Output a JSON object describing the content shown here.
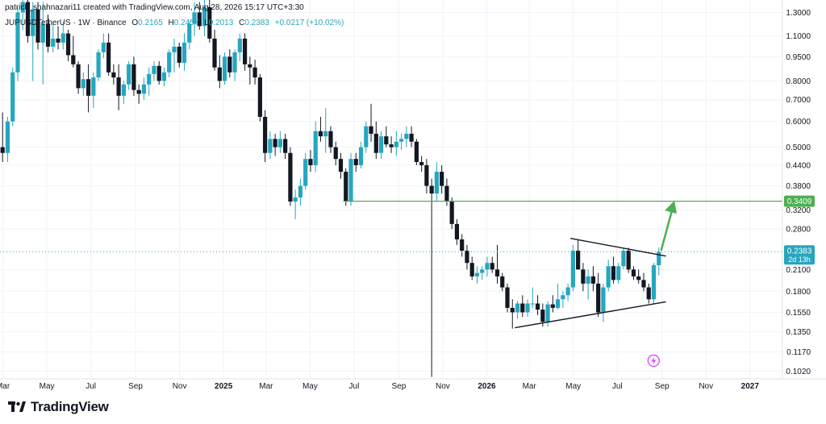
{
  "header": {
    "text": "patrick_shahnazari11 created with TradingView.com, Aug 28, 2026 15:17 UTC+3:30"
  },
  "legend": {
    "symbol": "JUPUSDTetherUS · 1W · Binance",
    "o_label": "O",
    "o": "0.2165",
    "h_label": "H",
    "h": "0.2457",
    "l_label": "L",
    "l": "0.2013",
    "c_label": "C",
    "c": "0.2383",
    "change": "+0.0217 (+10.02%)"
  },
  "brand": {
    "name": "TradingView"
  },
  "colors": {
    "up": "#26a6bf",
    "down": "#131722",
    "target_line": "#4caf50",
    "arrow": "#4caf50",
    "price_tag": "#26a6bf",
    "grid": "#f0f3fa"
  },
  "chart_data": {
    "type": "candlestick",
    "symbol": "JUPUSDT",
    "interval": "1W",
    "y_scale": "log",
    "y_ticks": [
      "1.3000",
      "1.1000",
      "0.9500",
      "0.8000",
      "0.7000",
      "0.6000",
      "0.5000",
      "0.4400",
      "0.3800",
      "0.3200",
      "0.2800",
      "0.2100",
      "0.1800",
      "0.1550",
      "0.1350",
      "0.1170",
      "0.1020"
    ],
    "x_ticks": [
      "Mar",
      "May",
      "Jul",
      "Sep",
      "Nov",
      "2025",
      "Mar",
      "May",
      "Jul",
      "Sep",
      "Nov",
      "2026",
      "Mar",
      "May",
      "Jul",
      "Sep",
      "Nov",
      "2027"
    ],
    "x_range": [
      "2024-02-26",
      "2027-02-15"
    ],
    "y_range": [
      0.0967,
      1.42
    ],
    "candles": [
      [
        "2024-02-26",
        0.5,
        0.64,
        0.45,
        0.48
      ],
      [
        "2024-03-04",
        0.48,
        0.62,
        0.45,
        0.6
      ],
      [
        "2024-03-11",
        0.6,
        0.88,
        0.58,
        0.85
      ],
      [
        "2024-03-18",
        0.85,
        1.35,
        0.8,
        1.3
      ],
      [
        "2024-03-25",
        1.3,
        1.55,
        1.15,
        1.4
      ],
      [
        "2024-04-01",
        1.4,
        1.45,
        1.05,
        1.1
      ],
      [
        "2024-04-08",
        1.1,
        1.4,
        0.8,
        1.33
      ],
      [
        "2024-04-15",
        1.33,
        1.4,
        1.0,
        1.05
      ],
      [
        "2024-04-22",
        1.05,
        1.4,
        0.78,
        1.2
      ],
      [
        "2024-04-29",
        1.2,
        1.28,
        0.98,
        1.02
      ],
      [
        "2024-05-06",
        1.02,
        1.2,
        0.98,
        1.08
      ],
      [
        "2024-05-13",
        1.08,
        1.18,
        1.0,
        1.05
      ],
      [
        "2024-05-20",
        1.05,
        1.22,
        1.0,
        1.12
      ],
      [
        "2024-05-27",
        1.12,
        1.15,
        0.92,
        0.96
      ],
      [
        "2024-06-03",
        0.96,
        1.1,
        0.88,
        0.9
      ],
      [
        "2024-06-10",
        0.9,
        0.92,
        0.73,
        0.76
      ],
      [
        "2024-06-17",
        0.76,
        0.85,
        0.72,
        0.81
      ],
      [
        "2024-06-24",
        0.81,
        0.9,
        0.64,
        0.72
      ],
      [
        "2024-07-01",
        0.72,
        0.85,
        0.66,
        0.82
      ],
      [
        "2024-07-08",
        0.82,
        1.0,
        0.8,
        0.98
      ],
      [
        "2024-07-15",
        0.98,
        1.12,
        0.94,
        1.05
      ],
      [
        "2024-07-22",
        1.05,
        1.12,
        0.83,
        0.85
      ],
      [
        "2024-07-29",
        0.85,
        0.9,
        0.78,
        0.82
      ],
      [
        "2024-08-05",
        0.82,
        0.9,
        0.65,
        0.72
      ],
      [
        "2024-08-12",
        0.72,
        0.8,
        0.68,
        0.78
      ],
      [
        "2024-08-19",
        0.78,
        0.92,
        0.75,
        0.9
      ],
      [
        "2024-08-26",
        0.9,
        0.95,
        0.72,
        0.75
      ],
      [
        "2024-09-02",
        0.75,
        0.78,
        0.68,
        0.73
      ],
      [
        "2024-09-09",
        0.73,
        0.82,
        0.7,
        0.78
      ],
      [
        "2024-09-16",
        0.78,
        0.88,
        0.72,
        0.84
      ],
      [
        "2024-09-23",
        0.84,
        0.92,
        0.8,
        0.89
      ],
      [
        "2024-09-30",
        0.89,
        0.92,
        0.78,
        0.8
      ],
      [
        "2024-10-07",
        0.8,
        0.88,
        0.77,
        0.85
      ],
      [
        "2024-10-14",
        0.85,
        1.0,
        0.82,
        0.98
      ],
      [
        "2024-10-21",
        0.98,
        1.08,
        0.85,
        1.02
      ],
      [
        "2024-10-28",
        1.02,
        1.05,
        0.88,
        0.91
      ],
      [
        "2024-11-04",
        0.91,
        1.12,
        0.86,
        1.05
      ],
      [
        "2024-11-11",
        1.05,
        1.22,
        1.0,
        1.2
      ],
      [
        "2024-11-18",
        1.2,
        1.4,
        1.1,
        1.3
      ],
      [
        "2024-11-25",
        1.3,
        1.4,
        1.15,
        1.18
      ],
      [
        "2024-12-02",
        1.18,
        1.45,
        1.1,
        1.35
      ],
      [
        "2024-12-09",
        1.35,
        1.42,
        1.05,
        1.08
      ],
      [
        "2024-12-16",
        1.08,
        1.15,
        0.86,
        0.88
      ],
      [
        "2024-12-23",
        0.88,
        0.96,
        0.76,
        0.8
      ],
      [
        "2024-12-30",
        0.8,
        0.98,
        0.78,
        0.95
      ],
      [
        "2025-01-06",
        0.95,
        1.0,
        0.82,
        0.85
      ],
      [
        "2025-01-13",
        0.85,
        1.0,
        0.8,
        0.98
      ],
      [
        "2025-01-20",
        0.98,
        1.12,
        0.92,
        1.08
      ],
      [
        "2025-01-27",
        1.08,
        1.12,
        0.86,
        0.9
      ],
      [
        "2025-02-03",
        0.9,
        0.95,
        0.78,
        0.88
      ],
      [
        "2025-02-10",
        0.88,
        0.93,
        0.78,
        0.82
      ],
      [
        "2025-02-17",
        0.82,
        0.84,
        0.6,
        0.62
      ],
      [
        "2025-02-24",
        0.62,
        0.65,
        0.45,
        0.48
      ],
      [
        "2025-03-03",
        0.48,
        0.56,
        0.46,
        0.53
      ],
      [
        "2025-03-10",
        0.53,
        0.55,
        0.47,
        0.5
      ],
      [
        "2025-03-17",
        0.5,
        0.56,
        0.48,
        0.53
      ],
      [
        "2025-03-24",
        0.53,
        0.55,
        0.46,
        0.48
      ],
      [
        "2025-03-31",
        0.48,
        0.5,
        0.33,
        0.34
      ],
      [
        "2025-04-07",
        0.34,
        0.37,
        0.3,
        0.35
      ],
      [
        "2025-04-14",
        0.35,
        0.4,
        0.33,
        0.38
      ],
      [
        "2025-04-21",
        0.38,
        0.48,
        0.37,
        0.46
      ],
      [
        "2025-04-28",
        0.46,
        0.49,
        0.42,
        0.44
      ],
      [
        "2025-05-05",
        0.44,
        0.6,
        0.42,
        0.56
      ],
      [
        "2025-05-12",
        0.56,
        0.62,
        0.52,
        0.54
      ],
      [
        "2025-05-19",
        0.54,
        0.66,
        0.48,
        0.56
      ],
      [
        "2025-05-26",
        0.56,
        0.58,
        0.48,
        0.5
      ],
      [
        "2025-06-02",
        0.5,
        0.52,
        0.44,
        0.46
      ],
      [
        "2025-06-09",
        0.46,
        0.48,
        0.4,
        0.42
      ],
      [
        "2025-06-16",
        0.42,
        0.43,
        0.33,
        0.34
      ],
      [
        "2025-06-23",
        0.34,
        0.48,
        0.33,
        0.46
      ],
      [
        "2025-06-30",
        0.46,
        0.48,
        0.42,
        0.44
      ],
      [
        "2025-07-07",
        0.44,
        0.52,
        0.43,
        0.5
      ],
      [
        "2025-07-14",
        0.5,
        0.6,
        0.48,
        0.58
      ],
      [
        "2025-07-21",
        0.58,
        0.68,
        0.52,
        0.55
      ],
      [
        "2025-07-28",
        0.55,
        0.6,
        0.46,
        0.48
      ],
      [
        "2025-08-04",
        0.48,
        0.56,
        0.46,
        0.54
      ],
      [
        "2025-08-11",
        0.54,
        0.58,
        0.5,
        0.51
      ],
      [
        "2025-08-18",
        0.51,
        0.54,
        0.48,
        0.5
      ],
      [
        "2025-08-25",
        0.5,
        0.56,
        0.47,
        0.52
      ],
      [
        "2025-09-01",
        0.52,
        0.55,
        0.49,
        0.53
      ],
      [
        "2025-09-08",
        0.53,
        0.58,
        0.5,
        0.55
      ],
      [
        "2025-09-15",
        0.55,
        0.58,
        0.5,
        0.52
      ],
      [
        "2025-09-22",
        0.52,
        0.53,
        0.44,
        0.45
      ],
      [
        "2025-09-29",
        0.45,
        0.47,
        0.42,
        0.44
      ],
      [
        "2025-10-06",
        0.44,
        0.46,
        0.36,
        0.38
      ],
      [
        "2025-10-13",
        0.38,
        0.4,
        0.098,
        0.36
      ],
      [
        "2025-10-20",
        0.36,
        0.45,
        0.34,
        0.42
      ],
      [
        "2025-10-27",
        0.42,
        0.44,
        0.36,
        0.38
      ],
      [
        "2025-11-03",
        0.38,
        0.4,
        0.33,
        0.34
      ],
      [
        "2025-11-10",
        0.34,
        0.35,
        0.28,
        0.29
      ],
      [
        "2025-11-17",
        0.29,
        0.3,
        0.25,
        0.26
      ],
      [
        "2025-11-24",
        0.26,
        0.27,
        0.23,
        0.24
      ],
      [
        "2025-12-01",
        0.24,
        0.25,
        0.21,
        0.22
      ],
      [
        "2025-12-08",
        0.22,
        0.23,
        0.195,
        0.2
      ],
      [
        "2025-12-15",
        0.2,
        0.215,
        0.19,
        0.205
      ],
      [
        "2025-12-22",
        0.205,
        0.215,
        0.195,
        0.21
      ],
      [
        "2025-12-29",
        0.21,
        0.23,
        0.2,
        0.22
      ],
      [
        "2026-01-05",
        0.22,
        0.23,
        0.205,
        0.21
      ],
      [
        "2026-01-12",
        0.21,
        0.25,
        0.19,
        0.2
      ],
      [
        "2026-01-19",
        0.2,
        0.205,
        0.18,
        0.185
      ],
      [
        "2026-01-26",
        0.185,
        0.19,
        0.155,
        0.16
      ],
      [
        "2026-02-02",
        0.16,
        0.17,
        0.138,
        0.155
      ],
      [
        "2026-02-09",
        0.155,
        0.168,
        0.148,
        0.165
      ],
      [
        "2026-02-16",
        0.165,
        0.175,
        0.15,
        0.155
      ],
      [
        "2026-02-23",
        0.155,
        0.17,
        0.15,
        0.165
      ],
      [
        "2026-03-02",
        0.165,
        0.185,
        0.16,
        0.165
      ],
      [
        "2026-03-09",
        0.165,
        0.175,
        0.152,
        0.158
      ],
      [
        "2026-03-16",
        0.158,
        0.165,
        0.14,
        0.145
      ],
      [
        "2026-03-23",
        0.145,
        0.168,
        0.14,
        0.164
      ],
      [
        "2026-03-30",
        0.164,
        0.175,
        0.155,
        0.16
      ],
      [
        "2026-04-06",
        0.16,
        0.19,
        0.158,
        0.17
      ],
      [
        "2026-04-13",
        0.17,
        0.18,
        0.16,
        0.175
      ],
      [
        "2026-04-20",
        0.175,
        0.19,
        0.168,
        0.185
      ],
      [
        "2026-04-27",
        0.185,
        0.25,
        0.18,
        0.24
      ],
      [
        "2026-05-04",
        0.24,
        0.26,
        0.21,
        0.21
      ],
      [
        "2026-05-11",
        0.21,
        0.22,
        0.18,
        0.19
      ],
      [
        "2026-05-18",
        0.19,
        0.21,
        0.17,
        0.2
      ],
      [
        "2026-05-25",
        0.2,
        0.215,
        0.18,
        0.19
      ],
      [
        "2026-06-01",
        0.19,
        0.205,
        0.15,
        0.155
      ],
      [
        "2026-06-08",
        0.155,
        0.19,
        0.145,
        0.185
      ],
      [
        "2026-06-15",
        0.185,
        0.225,
        0.18,
        0.215
      ],
      [
        "2026-06-22",
        0.215,
        0.23,
        0.19,
        0.195
      ],
      [
        "2026-06-29",
        0.195,
        0.22,
        0.19,
        0.215
      ],
      [
        "2026-07-06",
        0.215,
        0.245,
        0.21,
        0.24
      ],
      [
        "2026-07-13",
        0.24,
        0.245,
        0.205,
        0.21
      ],
      [
        "2026-07-20",
        0.21,
        0.215,
        0.195,
        0.2
      ],
      [
        "2026-07-27",
        0.2,
        0.21,
        0.19,
        0.195
      ],
      [
        "2026-08-03",
        0.195,
        0.205,
        0.18,
        0.185
      ],
      [
        "2026-08-10",
        0.185,
        0.19,
        0.165,
        0.17
      ],
      [
        "2026-08-17",
        0.17,
        0.22,
        0.165,
        0.2165
      ],
      [
        "2026-08-24",
        0.2165,
        0.2457,
        0.2013,
        0.2383
      ]
    ],
    "target_level": {
      "value": 0.3409,
      "label": "0.3409",
      "from": "2025-06-16"
    },
    "current_price": {
      "value": 0.2383,
      "label": "0.2383",
      "countdown": "2d 13h"
    },
    "triangle": {
      "upper": [
        [
          "2026-04-27",
          0.262
        ],
        [
          "2026-08-24",
          0.231
        ]
      ],
      "lower": [
        [
          "2026-02-09",
          0.139
        ],
        [
          "2026-08-24",
          0.167
        ]
      ]
    },
    "arrow": {
      "from": [
        "2026-08-24",
        0.24
      ],
      "to": [
        "2026-09-07",
        0.338
      ]
    },
    "flash_marker": [
      "2026-08-17",
      0.11
    ],
    "grid": true,
    "legend_position": "top-left"
  }
}
